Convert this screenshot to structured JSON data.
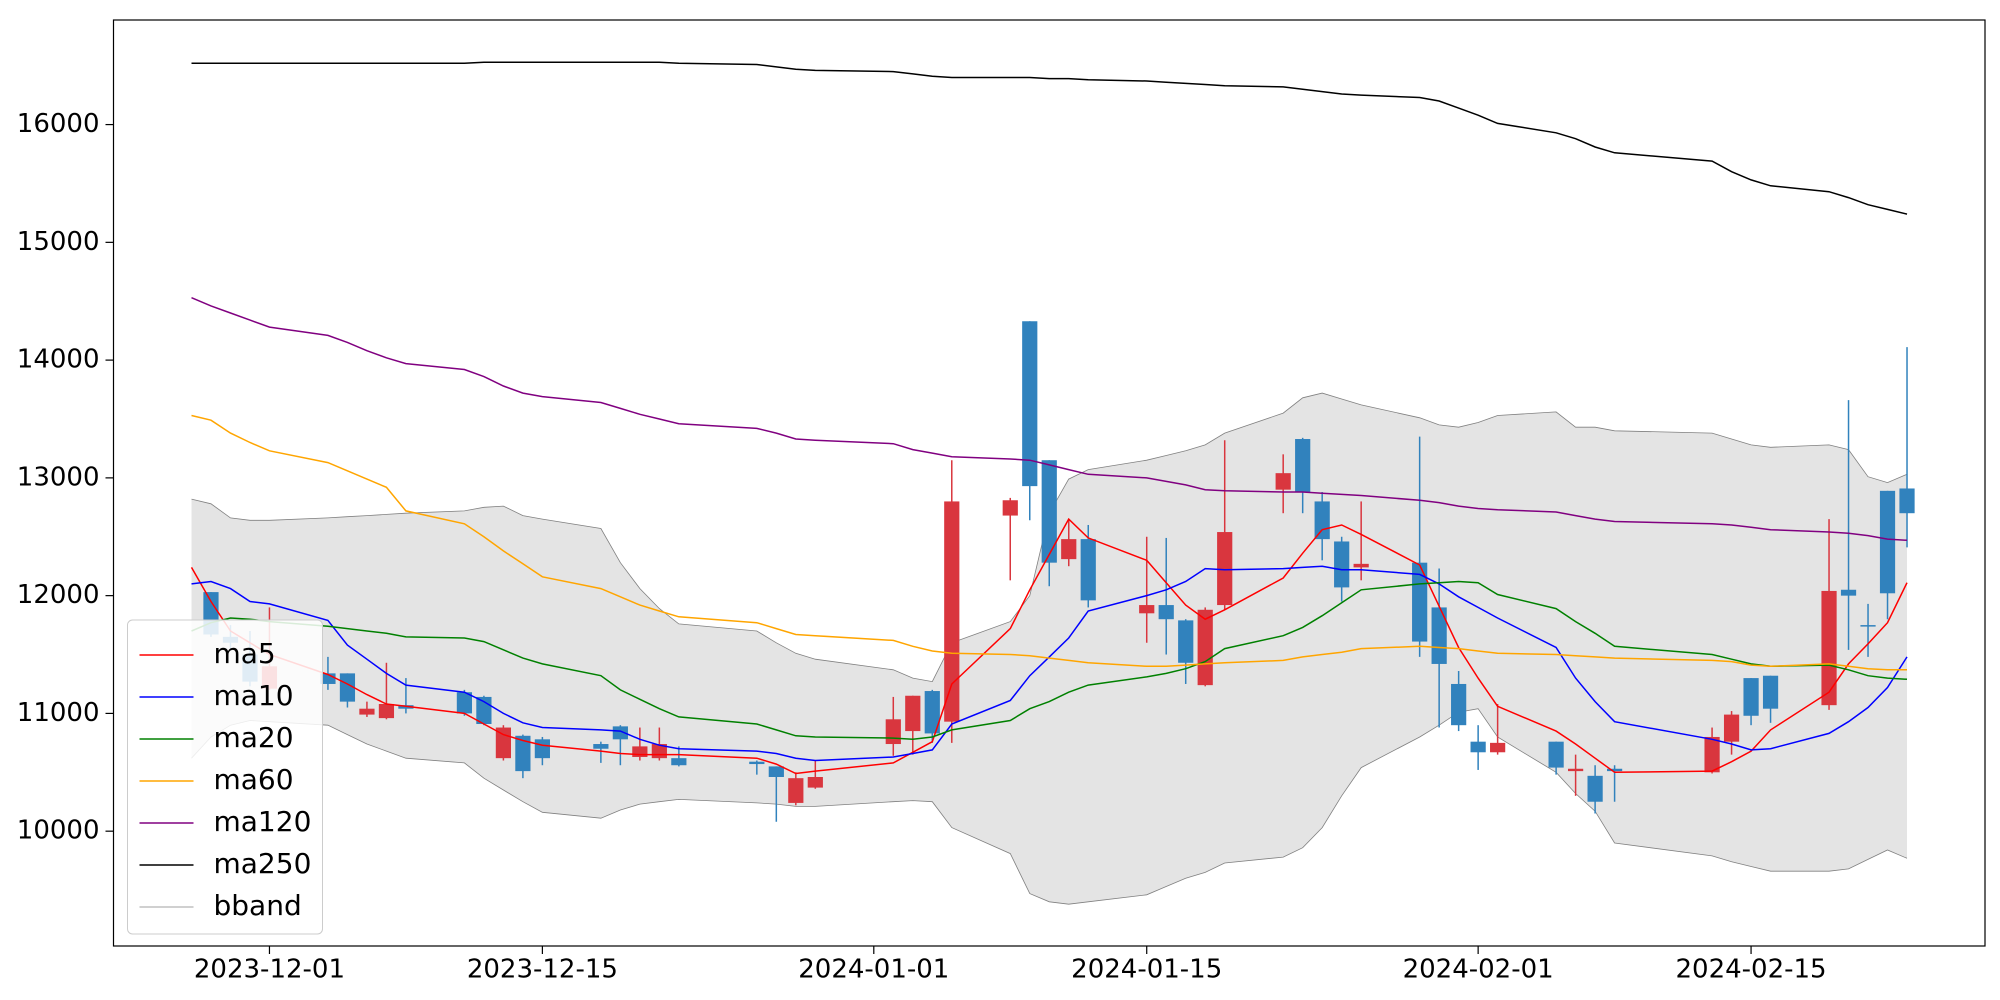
{
  "chart_data": {
    "type": "candlestick",
    "x": [
      "2023-11-27",
      "2023-11-28",
      "2023-11-29",
      "2023-11-30",
      "2023-12-01",
      "2023-12-04",
      "2023-12-05",
      "2023-12-06",
      "2023-12-07",
      "2023-12-08",
      "2023-12-11",
      "2023-12-12",
      "2023-12-13",
      "2023-12-14",
      "2023-12-15",
      "2023-12-18",
      "2023-12-19",
      "2023-12-20",
      "2023-12-21",
      "2023-12-22",
      "2023-12-26",
      "2023-12-27",
      "2023-12-28",
      "2023-12-29",
      "2024-01-02",
      "2024-01-03",
      "2024-01-04",
      "2024-01-05",
      "2024-01-08",
      "2024-01-09",
      "2024-01-10",
      "2024-01-11",
      "2024-01-12",
      "2024-01-15",
      "2024-01-16",
      "2024-01-17",
      "2024-01-18",
      "2024-01-19",
      "2024-01-22",
      "2024-01-23",
      "2024-01-24",
      "2024-01-25",
      "2024-01-26",
      "2024-01-29",
      "2024-01-30",
      "2024-01-31",
      "2024-02-01",
      "2024-02-02",
      "2024-02-05",
      "2024-02-06",
      "2024-02-07",
      "2024-02-08",
      "2024-02-13",
      "2024-02-14",
      "2024-02-15",
      "2024-02-16",
      "2024-02-19",
      "2024-02-20",
      "2024-02-21",
      "2024-02-22",
      "2024-02-23"
    ],
    "candles": {
      "up_color": "#d9363e",
      "down_color": "#3182bd",
      "open": [
        null,
        12030,
        11650,
        11500,
        11210,
        11340,
        11340,
        10990,
        10960,
        11070,
        11180,
        11140,
        10620,
        10810,
        10780,
        10740,
        10890,
        10630,
        10620,
        10620,
        10590,
        10550,
        10240,
        10370,
        10740,
        10850,
        11190,
        10930,
        12680,
        14330,
        13150,
        12310,
        12480,
        11850,
        11920,
        11790,
        11240,
        11920,
        12900,
        13330,
        12800,
        12460,
        12240,
        12280,
        11900,
        11250,
        10760,
        10670,
        10760,
        10510,
        10470,
        10530,
        10500,
        10760,
        11300,
        11320,
        11070,
        12050,
        11750,
        12890,
        12910
      ],
      "high": [
        null,
        12030,
        11750,
        11700,
        11900,
        11480,
        11340,
        11100,
        11430,
        11300,
        11200,
        11150,
        10900,
        10820,
        10800,
        10760,
        10900,
        10880,
        10880,
        10720,
        10600,
        10550,
        10500,
        10600,
        11140,
        11150,
        11200,
        13150,
        12830,
        14330,
        13150,
        12650,
        12600,
        12500,
        12490,
        11800,
        11900,
        13320,
        13200,
        13340,
        12880,
        12500,
        12800,
        13350,
        12230,
        11360,
        10900,
        11080,
        10760,
        10650,
        10560,
        10560,
        10880,
        11020,
        11300,
        11320,
        12650,
        13660,
        11930,
        12890,
        14110
      ],
      "low": [
        null,
        11650,
        11550,
        11230,
        11200,
        11200,
        11050,
        10970,
        10950,
        11000,
        10980,
        10900,
        10600,
        10450,
        10560,
        10580,
        10560,
        10600,
        10600,
        10550,
        10480,
        10080,
        10220,
        10360,
        10640,
        10650,
        10750,
        10750,
        12130,
        12640,
        12080,
        12250,
        11900,
        11600,
        11500,
        11250,
        11230,
        11880,
        12700,
        12700,
        12300,
        11950,
        12130,
        11480,
        10880,
        10850,
        10520,
        10650,
        10480,
        10300,
        10150,
        10250,
        10490,
        10650,
        10900,
        10920,
        11030,
        11540,
        11480,
        11800,
        12410
      ],
      "close": [
        null,
        11670,
        11600,
        11270,
        11400,
        11250,
        11100,
        11040,
        11080,
        11040,
        11000,
        10910,
        10880,
        10510,
        10620,
        10700,
        10780,
        10720,
        10740,
        10560,
        10570,
        10460,
        10450,
        10460,
        10950,
        11150,
        10830,
        12800,
        12810,
        12930,
        12280,
        12480,
        11960,
        11920,
        11800,
        11430,
        11880,
        12540,
        13040,
        12880,
        12480,
        12070,
        12270,
        11610,
        11420,
        10900,
        10670,
        10750,
        10540,
        10530,
        10250,
        10510,
        10800,
        10990,
        10980,
        11040,
        12040,
        12000,
        11740,
        12020,
        12700
      ]
    },
    "series": [
      {
        "name": "ma5",
        "color": "#ff0000",
        "values": [
          12240,
          11950,
          11700,
          11600,
          11500,
          11330,
          11250,
          11160,
          11080,
          11060,
          11000,
          10910,
          10820,
          10770,
          10730,
          10680,
          10660,
          10650,
          10650,
          10650,
          10620,
          10570,
          10490,
          10510,
          10580,
          10670,
          10760,
          11250,
          11720,
          12050,
          12350,
          12650,
          12490,
          12300,
          12110,
          11920,
          11800,
          11880,
          12150,
          12360,
          12560,
          12600,
          12520,
          12260,
          11910,
          11560,
          11300,
          11060,
          10850,
          10740,
          10620,
          10500,
          10510,
          10590,
          10680,
          10860,
          11180,
          11420,
          11590,
          11770,
          12110
        ]
      },
      {
        "name": "ma10",
        "color": "#0000ff",
        "values": [
          12100,
          12120,
          12060,
          11950,
          11930,
          11790,
          11580,
          11460,
          11340,
          11240,
          11180,
          11100,
          11000,
          10920,
          10880,
          10860,
          10850,
          10780,
          10730,
          10700,
          10680,
          10660,
          10620,
          10600,
          10630,
          10660,
          10690,
          10910,
          11110,
          11320,
          11480,
          11640,
          11870,
          12000,
          12050,
          12120,
          12230,
          12220,
          12230,
          12240,
          12250,
          12220,
          12220,
          12180,
          12100,
          11990,
          11900,
          11810,
          11560,
          11300,
          11100,
          10930,
          10780,
          10740,
          10690,
          10700,
          10830,
          10930,
          11050,
          11220,
          11480
        ]
      },
      {
        "name": "ma20",
        "color": "#008000",
        "values": [
          11700,
          11770,
          11810,
          11800,
          11780,
          11740,
          11720,
          11700,
          11680,
          11650,
          11640,
          11610,
          11540,
          11470,
          11420,
          11320,
          11200,
          11120,
          11040,
          10970,
          10910,
          10860,
          10810,
          10800,
          10790,
          10780,
          10800,
          10860,
          10940,
          11040,
          11100,
          11180,
          11240,
          11310,
          11340,
          11380,
          11440,
          11550,
          11660,
          11730,
          11830,
          11940,
          12050,
          12100,
          12110,
          12120,
          12110,
          12010,
          11890,
          11780,
          11680,
          11570,
          11500,
          11460,
          11420,
          11400,
          11410,
          11370,
          11320,
          11300,
          11290
        ]
      },
      {
        "name": "ma60",
        "color": "#ffa500",
        "values": [
          13530,
          13490,
          13380,
          13300,
          13230,
          13130,
          13060,
          12990,
          12920,
          12720,
          12610,
          12500,
          12380,
          12270,
          12160,
          12060,
          11990,
          11920,
          11870,
          11820,
          11770,
          11720,
          11670,
          11660,
          11620,
          11570,
          11530,
          11510,
          11500,
          11490,
          11470,
          11450,
          11430,
          11400,
          11400,
          11410,
          11420,
          11430,
          11450,
          11480,
          11500,
          11520,
          11550,
          11570,
          11560,
          11550,
          11530,
          11510,
          11500,
          11490,
          11480,
          11470,
          11450,
          11440,
          11410,
          11400,
          11420,
          11400,
          11380,
          11370,
          11370
        ]
      },
      {
        "name": "ma120",
        "color": "#800080",
        "values": [
          14530,
          14460,
          14400,
          14340,
          14280,
          14210,
          14150,
          14080,
          14020,
          13970,
          13920,
          13860,
          13780,
          13720,
          13690,
          13640,
          13590,
          13540,
          13500,
          13460,
          13420,
          13380,
          13330,
          13320,
          13290,
          13240,
          13210,
          13180,
          13160,
          13150,
          13110,
          13070,
          13030,
          13000,
          12970,
          12940,
          12900,
          12890,
          12880,
          12880,
          12870,
          12860,
          12850,
          12810,
          12790,
          12760,
          12740,
          12730,
          12710,
          12680,
          12650,
          12630,
          12610,
          12600,
          12580,
          12560,
          12540,
          12530,
          12510,
          12480,
          12470
        ]
      },
      {
        "name": "ma250",
        "color": "#000000",
        "values": [
          16520,
          16520,
          16520,
          16520,
          16520,
          16520,
          16520,
          16520,
          16520,
          16520,
          16520,
          16530,
          16530,
          16530,
          16530,
          16530,
          16530,
          16530,
          16530,
          16520,
          16510,
          16490,
          16470,
          16460,
          16450,
          16430,
          16410,
          16400,
          16400,
          16400,
          16390,
          16390,
          16380,
          16370,
          16360,
          16350,
          16340,
          16330,
          16320,
          16300,
          16280,
          16260,
          16250,
          16230,
          16200,
          16140,
          16080,
          16010,
          15930,
          15880,
          15810,
          15760,
          15690,
          15600,
          15530,
          15480,
          15430,
          15380,
          15320,
          15280,
          15240
        ]
      },
      {
        "name": "bband",
        "color": "#808080",
        "fill": "#e4e4e4",
        "upper": [
          12820,
          12780,
          12660,
          12640,
          12640,
          12660,
          12670,
          12680,
          12690,
          12700,
          12720,
          12750,
          12760,
          12680,
          12650,
          12570,
          12280,
          12060,
          11890,
          11760,
          11700,
          11600,
          11510,
          11460,
          11370,
          11300,
          11270,
          11600,
          11780,
          12000,
          12700,
          12990,
          13070,
          13150,
          13190,
          13230,
          13280,
          13380,
          13550,
          13680,
          13720,
          13670,
          13620,
          13510,
          13450,
          13430,
          13470,
          13530,
          13560,
          13430,
          13430,
          13400,
          13380,
          13330,
          13280,
          13260,
          13280,
          13240,
          13010,
          12960,
          13030
        ],
        "lower": [
          10620,
          10800,
          10900,
          10940,
          10930,
          10900,
          10820,
          10740,
          10680,
          10620,
          10580,
          10450,
          10350,
          10250,
          10160,
          10110,
          10180,
          10230,
          10250,
          10270,
          10240,
          10230,
          10210,
          10210,
          10250,
          10260,
          10250,
          10030,
          9810,
          9470,
          9400,
          9380,
          9400,
          9460,
          9530,
          9600,
          9650,
          9730,
          9780,
          9860,
          10030,
          10300,
          10540,
          10800,
          10900,
          11010,
          11040,
          10800,
          10500,
          10320,
          10170,
          9900,
          9790,
          9740,
          9700,
          9660,
          9660,
          9680,
          9760,
          9840,
          9770
        ]
      }
    ],
    "xlim": [
      "2023-11-23",
      "2024-02-27"
    ],
    "xticks": [
      "2023-12-01",
      "2023-12-15",
      "2024-01-01",
      "2024-01-15",
      "2024-02-01",
      "2024-02-15"
    ],
    "ylim": [
      9025,
      16888
    ],
    "yticks": [
      10000,
      11000,
      12000,
      13000,
      14000,
      15000,
      16000
    ],
    "grid": false,
    "legend": "lower left"
  }
}
